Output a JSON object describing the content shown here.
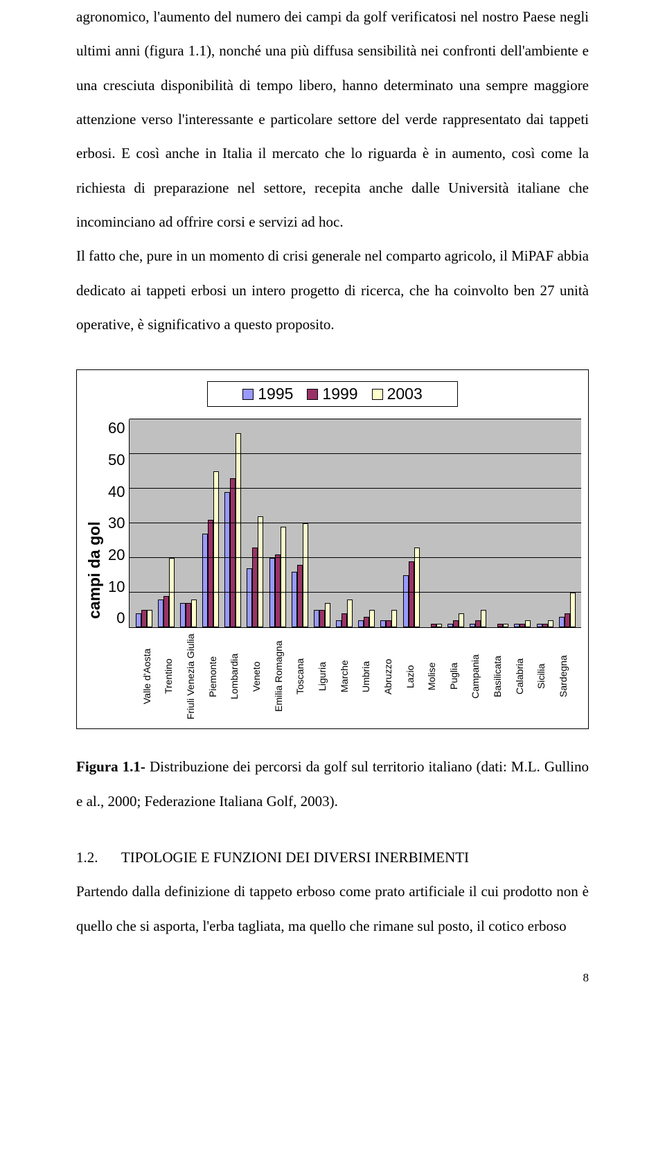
{
  "text": {
    "p1": "agronomico, l'aumento del numero dei campi da golf verificatosi nel nostro Paese negli ultimi anni (figura 1.1), nonché una più diffusa sensibilità nei confronti dell'ambiente e una cresciuta disponibilità di tempo libero, hanno determinato una sempre maggiore attenzione verso l'interessante e particolare settore del verde rappresentato dai tappeti erbosi. E così anche in Italia il mercato che lo riguarda è in aumento, così come la richiesta di preparazione nel settore, recepita anche dalle Università italiane che incominciano ad offrire corsi e servizi ad hoc.",
    "p2": "Il fatto che, pure in un momento di crisi generale nel comparto agricolo, il MiPAF abbia dedicato ai tappeti erbosi un intero progetto di ricerca, che ha coinvolto ben 27 unità operative, è significativo a questo proposito."
  },
  "chart": {
    "type": "bar",
    "legend": [
      "1995",
      "1999",
      "2003"
    ],
    "series_colors": [
      "#9999ff",
      "#993366",
      "#ffffcc"
    ],
    "plot_bg": "#c0c0c0",
    "grid_color": "#000000",
    "border_color": "#000000",
    "y_label": "campi da gol",
    "y_label_fontsize": 23,
    "y_label_fontweight": "bold",
    "y_ticks": [
      "60",
      "50",
      "40",
      "30",
      "20",
      "10",
      "0"
    ],
    "ylim_max": 60,
    "tick_fontsize": 22,
    "x_label_fontsize": 14,
    "font_family": "Arial",
    "categories": [
      "Valle d'Aosta",
      "Trentino",
      "Friuli Venezia Giulia",
      "Piemonte",
      "Lombardia",
      "Veneto",
      "Emilia Romagna",
      "Toscana",
      "Liguria",
      "Marche",
      "Umbria",
      "Abruzzo",
      "Lazio",
      "Molise",
      "Puglia",
      "Campania",
      "Basilicata",
      "Calabria",
      "Sicilia",
      "Sardegna"
    ],
    "values_1995": [
      4,
      8,
      7,
      27,
      39,
      17,
      20,
      16,
      5,
      2,
      2,
      2,
      15,
      0,
      1,
      1,
      0,
      1,
      1,
      3
    ],
    "values_1999": [
      5,
      9,
      7,
      31,
      43,
      23,
      21,
      18,
      5,
      4,
      3,
      2,
      19,
      1,
      2,
      2,
      1,
      1,
      1,
      4
    ],
    "values_2003": [
      5,
      20,
      8,
      45,
      56,
      32,
      29,
      30,
      7,
      8,
      5,
      5,
      23,
      1,
      4,
      5,
      1,
      2,
      2,
      10
    ]
  },
  "caption": {
    "lead": "Figura 1.1-",
    "rest": " Distribuzione dei percorsi da golf sul territorio italiano (dati: M.L. Gullino e al., 2000;  Federazione Italiana Golf, 2003)."
  },
  "section": {
    "num": "1.2.",
    "title": "TIPOLOGIE E FUNZIONI DEI DIVERSI INERBIMENTI",
    "para": "Partendo dalla definizione di tappeto erboso come prato artificiale il cui prodotto non è quello che si asporta, l'erba tagliata, ma quello che rimane sul posto, il cotico erboso"
  },
  "page_number": "8"
}
